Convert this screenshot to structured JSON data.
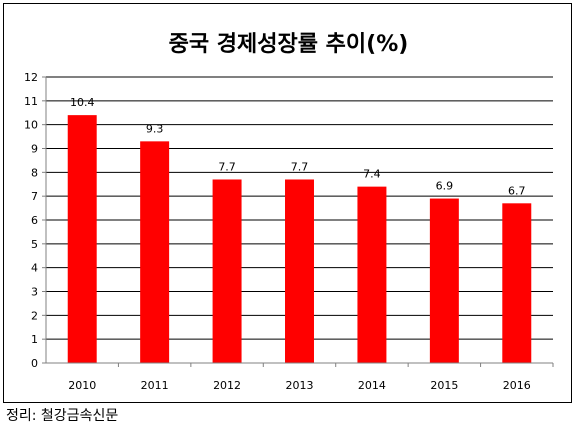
{
  "chart_data": {
    "type": "bar",
    "title": "중국 경제성장률 추이(%)",
    "categories": [
      "2010",
      "2011",
      "2012",
      "2013",
      "2014",
      "2015",
      "2016"
    ],
    "values": [
      10.4,
      9.3,
      7.7,
      7.7,
      7.4,
      6.9,
      6.7
    ],
    "data_labels": [
      "10.4",
      "9.3",
      "7.7",
      "7.7",
      "7.4",
      "6.9",
      "6.7"
    ],
    "yticks": [
      "0",
      "1",
      "2",
      "3",
      "4",
      "5",
      "6",
      "7",
      "8",
      "9",
      "10",
      "11",
      "12"
    ],
    "ylim": [
      0,
      12
    ],
    "grid": true,
    "legend": "none",
    "colors": {
      "bar": "#ff0000",
      "grid": "#000000",
      "axis": "#808080"
    }
  },
  "source": "정리: 철강금속신문"
}
